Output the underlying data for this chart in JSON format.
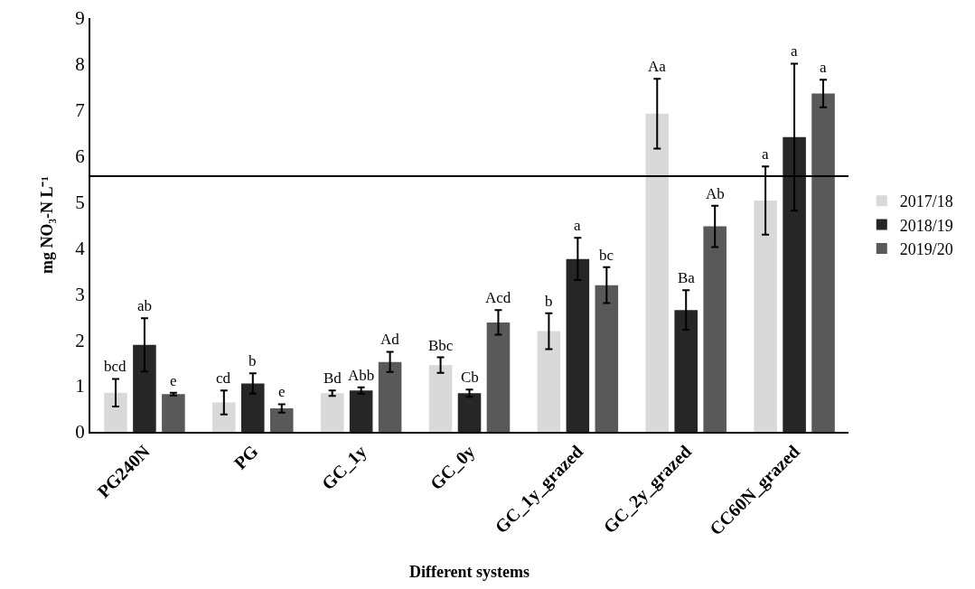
{
  "chart_data": {
    "type": "bar",
    "xlabel": "Different systems",
    "ylabel": "mg NO₃-N L⁻¹",
    "categories": [
      "PG240N",
      "PG",
      "GC_1y",
      "GC_0y",
      "GC_1y_grazed",
      "GC_2y_grazed",
      "CC60N_grazed"
    ],
    "series": [
      {
        "name": "2017/18",
        "color": "#d9d9d9",
        "values": [
          0.85,
          0.64,
          0.84,
          1.45,
          2.19,
          6.92,
          5.03
        ],
        "errors": [
          0.3,
          0.26,
          0.06,
          0.17,
          0.39,
          0.76,
          0.74
        ],
        "value_labels": [
          "bcd",
          "cd",
          "Bd",
          "Bbc",
          "b",
          "Aa",
          "a"
        ]
      },
      {
        "name": "2018/19",
        "color": "#262626",
        "values": [
          1.89,
          1.05,
          0.9,
          0.84,
          3.76,
          2.65,
          6.41
        ],
        "errors": [
          0.58,
          0.22,
          0.07,
          0.08,
          0.46,
          0.43,
          1.6
        ],
        "value_labels": [
          "ab",
          "b",
          "Abb",
          "Cb",
          "a",
          "Ba",
          null
        ]
      },
      {
        "name": "2019/20",
        "color": "#595959",
        "values": [
          0.82,
          0.51,
          1.52,
          2.38,
          3.19,
          4.47,
          7.36
        ],
        "errors": [
          0.03,
          0.09,
          0.22,
          0.27,
          0.39,
          0.45,
          0.3
        ],
        "value_labels": [
          "e",
          "e",
          "Ad",
          "Acd",
          "bc",
          "Ab",
          "a"
        ]
      }
    ],
    "annotations": [
      {
        "text": "a",
        "x": "CC60N_grazed",
        "y": 8.01
      }
    ],
    "ylim": [
      0,
      9
    ],
    "yticks": [
      0,
      1,
      2,
      3,
      4,
      5,
      6,
      7,
      8,
      9
    ],
    "ref_lines": [
      {
        "axis": "y",
        "value": 5.56,
        "color": "#000000"
      }
    ],
    "grid": false,
    "legend": "right"
  }
}
